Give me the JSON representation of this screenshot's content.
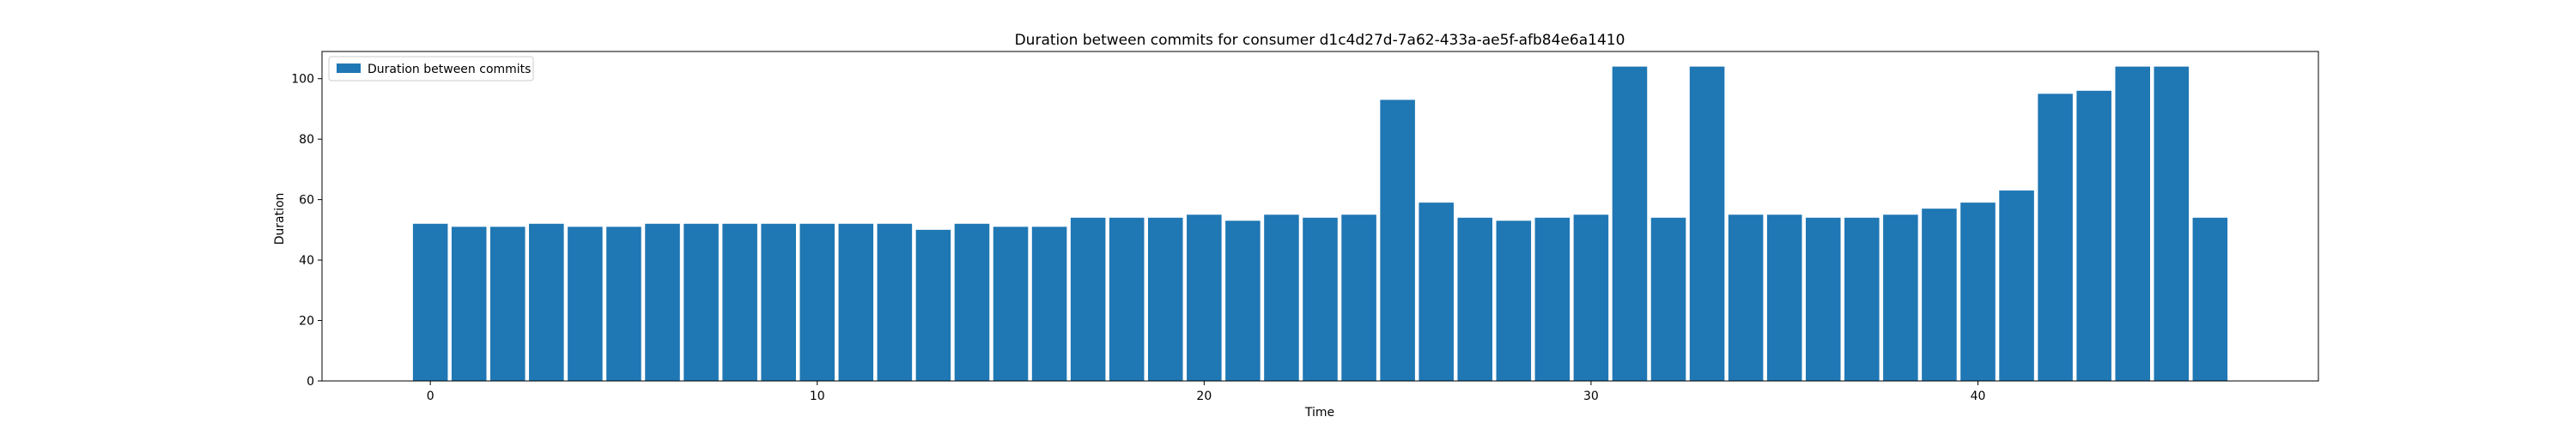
{
  "chart_data": {
    "type": "bar",
    "title": "Duration between commits for consumer d1c4d27d-7a62-433a-ae5f-afb84e6a1410",
    "xlabel": "Time",
    "ylabel": "Duration",
    "x": [
      0,
      1,
      2,
      3,
      4,
      5,
      6,
      7,
      8,
      9,
      10,
      11,
      12,
      13,
      14,
      15,
      16,
      17,
      18,
      19,
      20,
      21,
      22,
      23,
      24,
      25,
      26,
      27,
      28,
      29,
      30,
      31,
      32,
      33,
      34,
      35,
      36,
      37,
      38,
      39,
      40,
      41,
      42,
      43,
      44,
      45,
      46
    ],
    "series": [
      {
        "name": "Duration between commits",
        "color": "#1f77b4",
        "values": [
          52,
          51,
          51,
          52,
          51,
          51,
          52,
          52,
          52,
          52,
          52,
          52,
          52,
          50,
          52,
          51,
          51,
          54,
          54,
          54,
          55,
          53,
          55,
          54,
          55,
          93,
          59,
          54,
          53,
          54,
          55,
          104,
          54,
          104,
          55,
          55,
          54,
          54,
          55,
          57,
          59,
          63,
          95,
          96,
          104,
          104,
          54
        ]
      }
    ],
    "xlim": [
      -2.8,
      48.8
    ],
    "ylim": [
      0,
      109
    ],
    "xticks": [
      0,
      10,
      20,
      30,
      40
    ],
    "yticks": [
      0,
      20,
      40,
      60,
      80,
      100
    ],
    "grid": false,
    "legend_position": "top-left"
  }
}
